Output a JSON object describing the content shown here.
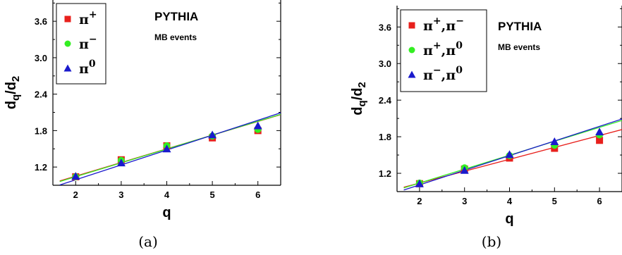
{
  "chart_data": [
    {
      "type": "scatter",
      "panel_label": "(a)",
      "xlabel": "q",
      "ylabel": "d_q/d_2",
      "xlim": [
        1.5,
        6.5
      ],
      "ylim": [
        0.9,
        3.95
      ],
      "xticks": [
        "2",
        "3",
        "4",
        "5",
        "6"
      ],
      "yticks": [
        "1.2",
        "1.8",
        "2.4",
        "3.0",
        "3.6"
      ],
      "annotation_title": "PYTHIA",
      "annotation_subtitle": "MB events",
      "legend_position": "top-left",
      "x": [
        2,
        3,
        4,
        5,
        6
      ],
      "series": [
        {
          "name": "π+",
          "name_base": "π",
          "name_sup": "+",
          "color": "#e8201c",
          "marker": "square",
          "values": [
            1.04,
            1.32,
            1.55,
            1.68,
            1.8
          ],
          "fit": {
            "slope": 0.225,
            "intercept": 0.6
          }
        },
        {
          "name": "π−",
          "name_base": "π",
          "name_sup": "−",
          "color": "#33ee22",
          "marker": "circle",
          "values": [
            1.04,
            1.31,
            1.55,
            1.71,
            1.82
          ],
          "fit": {
            "slope": 0.228,
            "intercept": 0.585
          }
        },
        {
          "name": "π0",
          "name_base": "π",
          "name_sup": "0",
          "color": "#1a1acc",
          "marker": "triangle",
          "values": [
            1.05,
            1.27,
            1.5,
            1.73,
            1.88
          ],
          "fit": {
            "slope": 0.245,
            "intercept": 0.5
          }
        }
      ]
    },
    {
      "type": "scatter",
      "panel_label": "(b)",
      "xlabel": "q",
      "ylabel": "d_q/d_2",
      "xlim": [
        1.5,
        6.5
      ],
      "ylim": [
        0.9,
        3.95
      ],
      "xticks": [
        "2",
        "3",
        "4",
        "5",
        "6"
      ],
      "yticks": [
        "1.2",
        "1.8",
        "2.4",
        "3.0",
        "3.6"
      ],
      "annotation_title": "PYTHIA",
      "annotation_subtitle": "MB events",
      "legend_position": "top-left",
      "x": [
        2,
        3,
        4,
        5,
        6
      ],
      "series": [
        {
          "name": "π+,π−",
          "name_base": "π",
          "name_sup": "+",
          "name_rest": ",π",
          "name_sup2": "−",
          "color": "#e8201c",
          "marker": "square",
          "values": [
            1.03,
            1.27,
            1.45,
            1.61,
            1.74
          ],
          "fit": {
            "slope": 0.195,
            "intercept": 0.65
          }
        },
        {
          "name": "π+,π0",
          "name_base": "π",
          "name_sup": "+",
          "name_rest": ",π",
          "name_sup2": "0",
          "color": "#33ee22",
          "marker": "circle",
          "values": [
            1.04,
            1.29,
            1.49,
            1.66,
            1.83
          ],
          "fit": {
            "slope": 0.228,
            "intercept": 0.585
          }
        },
        {
          "name": "π−,π0",
          "name_base": "π",
          "name_sup": "−",
          "name_rest": ",π",
          "name_sup2": "0",
          "color": "#1a1acc",
          "marker": "triangle",
          "values": [
            1.03,
            1.25,
            1.51,
            1.72,
            1.88
          ],
          "fit": {
            "slope": 0.24,
            "intercept": 0.53
          }
        }
      ]
    }
  ]
}
